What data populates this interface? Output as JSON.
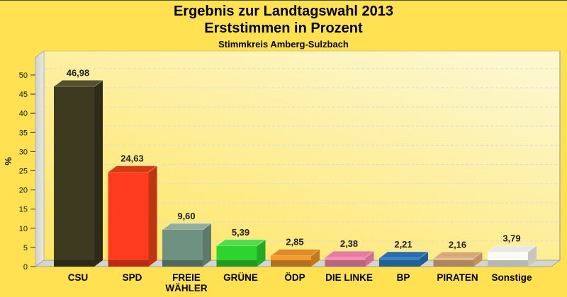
{
  "page": {
    "background_color": "#FFE151",
    "top_border_color": "#53533C"
  },
  "header": {
    "title_line1": "Ergebnis zur Landtagswahl 2013",
    "title_line2": "Erststimmen in Prozent",
    "subtitle": "Stimmkreis Amberg-Sulzbach"
  },
  "chart_data": {
    "type": "bar",
    "style": "3d-column",
    "title": "Ergebnis zur Landtagswahl 2013",
    "subtitle2": "Erststimmen in Prozent",
    "subtitle3": "Stimmkreis Amberg-Sulzbach",
    "xlabel": "",
    "ylabel": "%",
    "ylim": [
      0,
      50
    ],
    "yticks": [
      0,
      5,
      10,
      15,
      20,
      25,
      30,
      35,
      40,
      45,
      50
    ],
    "grid": "horizontal-dashed",
    "legend": "none",
    "decimal_separator": ",",
    "categories": [
      "CSU",
      "SPD",
      "FREIE WÄHLER",
      "GRÜNE",
      "ÖDP",
      "DIE LINKE",
      "BP",
      "PIRATEN",
      "Sonstige"
    ],
    "categories_display": [
      [
        "CSU"
      ],
      [
        "SPD"
      ],
      [
        "FREIE",
        "WÄHLER"
      ],
      [
        "GRÜNE"
      ],
      [
        "ÖDP"
      ],
      [
        "DIE LINKE"
      ],
      [
        "BP"
      ],
      [
        "PIRATEN"
      ],
      [
        "Sonstige"
      ]
    ],
    "values": [
      46.98,
      24.63,
      9.6,
      5.39,
      2.85,
      2.38,
      2.21,
      2.16,
      3.79
    ],
    "value_labels": [
      "46,98",
      "24,63",
      "9,60",
      "5,39",
      "2,85",
      "2,38",
      "2,21",
      "2,16",
      "3,79"
    ],
    "bar_colors": [
      {
        "party": "CSU",
        "front": "#3D3A20",
        "top": "#54502E",
        "side": "#2E2B18"
      },
      {
        "party": "SPD",
        "front": "#FE3B1C",
        "top": "#D23D10",
        "side": "#BE3511"
      },
      {
        "party": "FREIE WÄHLER",
        "front": "#6F9181",
        "top": "#90AD9D",
        "side": "#5D7A6C"
      },
      {
        "party": "GRÜNE",
        "front": "#2FD32F",
        "top": "#4CDE4C",
        "side": "#25AA25"
      },
      {
        "party": "ÖDP",
        "front": "#F59C2E",
        "top": "#DD8D24",
        "side": "#C47A1B"
      },
      {
        "party": "DIE LINKE",
        "front": "#F98CB0",
        "top": "#E77CA2",
        "side": "#D56C92"
      },
      {
        "party": "BP",
        "front": "#2E85C9",
        "top": "#2C6EAC",
        "side": "#1F5F95"
      },
      {
        "party": "PIRATEN",
        "front": "#E9BA88",
        "top": "#D8A977",
        "side": "#C2925F"
      },
      {
        "party": "Sonstige",
        "front": "#FBFBF6",
        "top": "#E9E9E3",
        "side": "#C7C7BF"
      }
    ],
    "colors": {
      "plot_bg_from": "#FFE45E",
      "plot_bg_to": "#FCF7CD",
      "plot_bg_edge": "#DCC65E",
      "left_wall_from": "#D2D2CC",
      "left_wall_to": "#EAEAE6",
      "wall_edge": "#B2B2AC",
      "floor": "#D5D5CF",
      "floor_edge": "#A3A39B",
      "right_edge": "#B0B09C",
      "gridline": "#DCDCD4",
      "wall_gridline": "#C2C2BA",
      "tick": "#3A3A3A",
      "axis_text": "#141414",
      "value_text": "#202020",
      "category_text": "#000000"
    }
  }
}
